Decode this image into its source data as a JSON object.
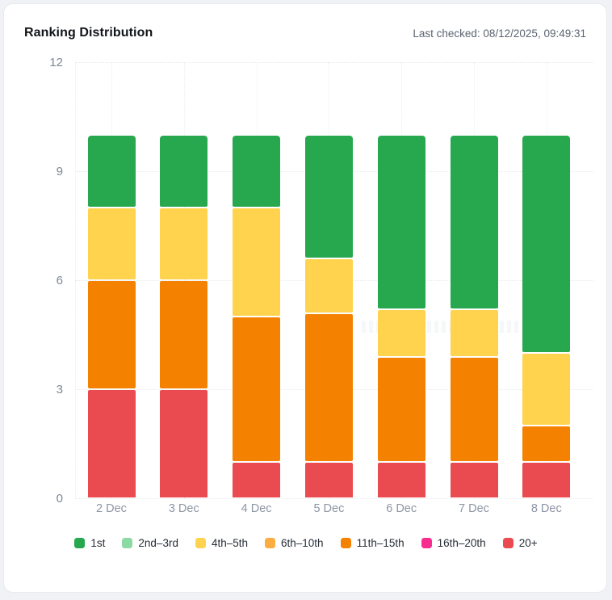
{
  "header": {
    "title": "Ranking Distribution",
    "last_checked": "Last checked: 08/12/2025, 09:49:31"
  },
  "colors": {
    "card_background": "#ffffff",
    "page_background": "#f0f2f6",
    "grid": "#e7e9ee",
    "axis_text": "#7d8795",
    "category_text": "#8d96a4",
    "rank_1st": "#27a84e",
    "rank_2nd_3rd": "#8bdaa4",
    "rank_4th_5th": "#ffd34e",
    "rank_6th_10th": "#fbad41",
    "rank_11th_15th": "#f48200",
    "rank_16th_20th": "#f82d8f",
    "rank_20_plus": "#ea4b50"
  },
  "chart_data": {
    "type": "bar",
    "stacked": true,
    "title": "Ranking Distribution",
    "xlabel": "",
    "ylabel": "",
    "ylim": [
      0,
      12
    ],
    "yticks": [
      0,
      3,
      6,
      9,
      12
    ],
    "grid": "dotted",
    "legend_position": "bottom",
    "categories": [
      "2 Dec",
      "3 Dec",
      "4 Dec",
      "5 Dec",
      "6 Dec",
      "7 Dec",
      "8 Dec"
    ],
    "series": [
      {
        "name": "1st",
        "color": "#27a84e",
        "values": [
          2,
          2,
          2,
          3.4,
          4.8,
          4.8,
          6
        ]
      },
      {
        "name": "2nd–3rd",
        "color": "#8bdaa4",
        "values": [
          0,
          0,
          0,
          0,
          0,
          0,
          0
        ]
      },
      {
        "name": "4th–5th",
        "color": "#ffd34e",
        "values": [
          2,
          2,
          3,
          1.5,
          1.3,
          1.3,
          2
        ]
      },
      {
        "name": "6th–10th",
        "color": "#fbad41",
        "values": [
          0,
          0,
          0,
          0,
          0,
          0,
          0
        ]
      },
      {
        "name": "11th–15th",
        "color": "#f48200",
        "values": [
          3,
          3,
          4,
          4.1,
          2.9,
          2.9,
          1
        ]
      },
      {
        "name": "16th–20th",
        "color": "#f82d8f",
        "values": [
          0,
          0,
          0,
          0,
          0,
          0,
          0
        ]
      },
      {
        "name": "20+",
        "color": "#ea4b50",
        "values": [
          3,
          3,
          1,
          1,
          1,
          1,
          1
        ]
      }
    ]
  }
}
